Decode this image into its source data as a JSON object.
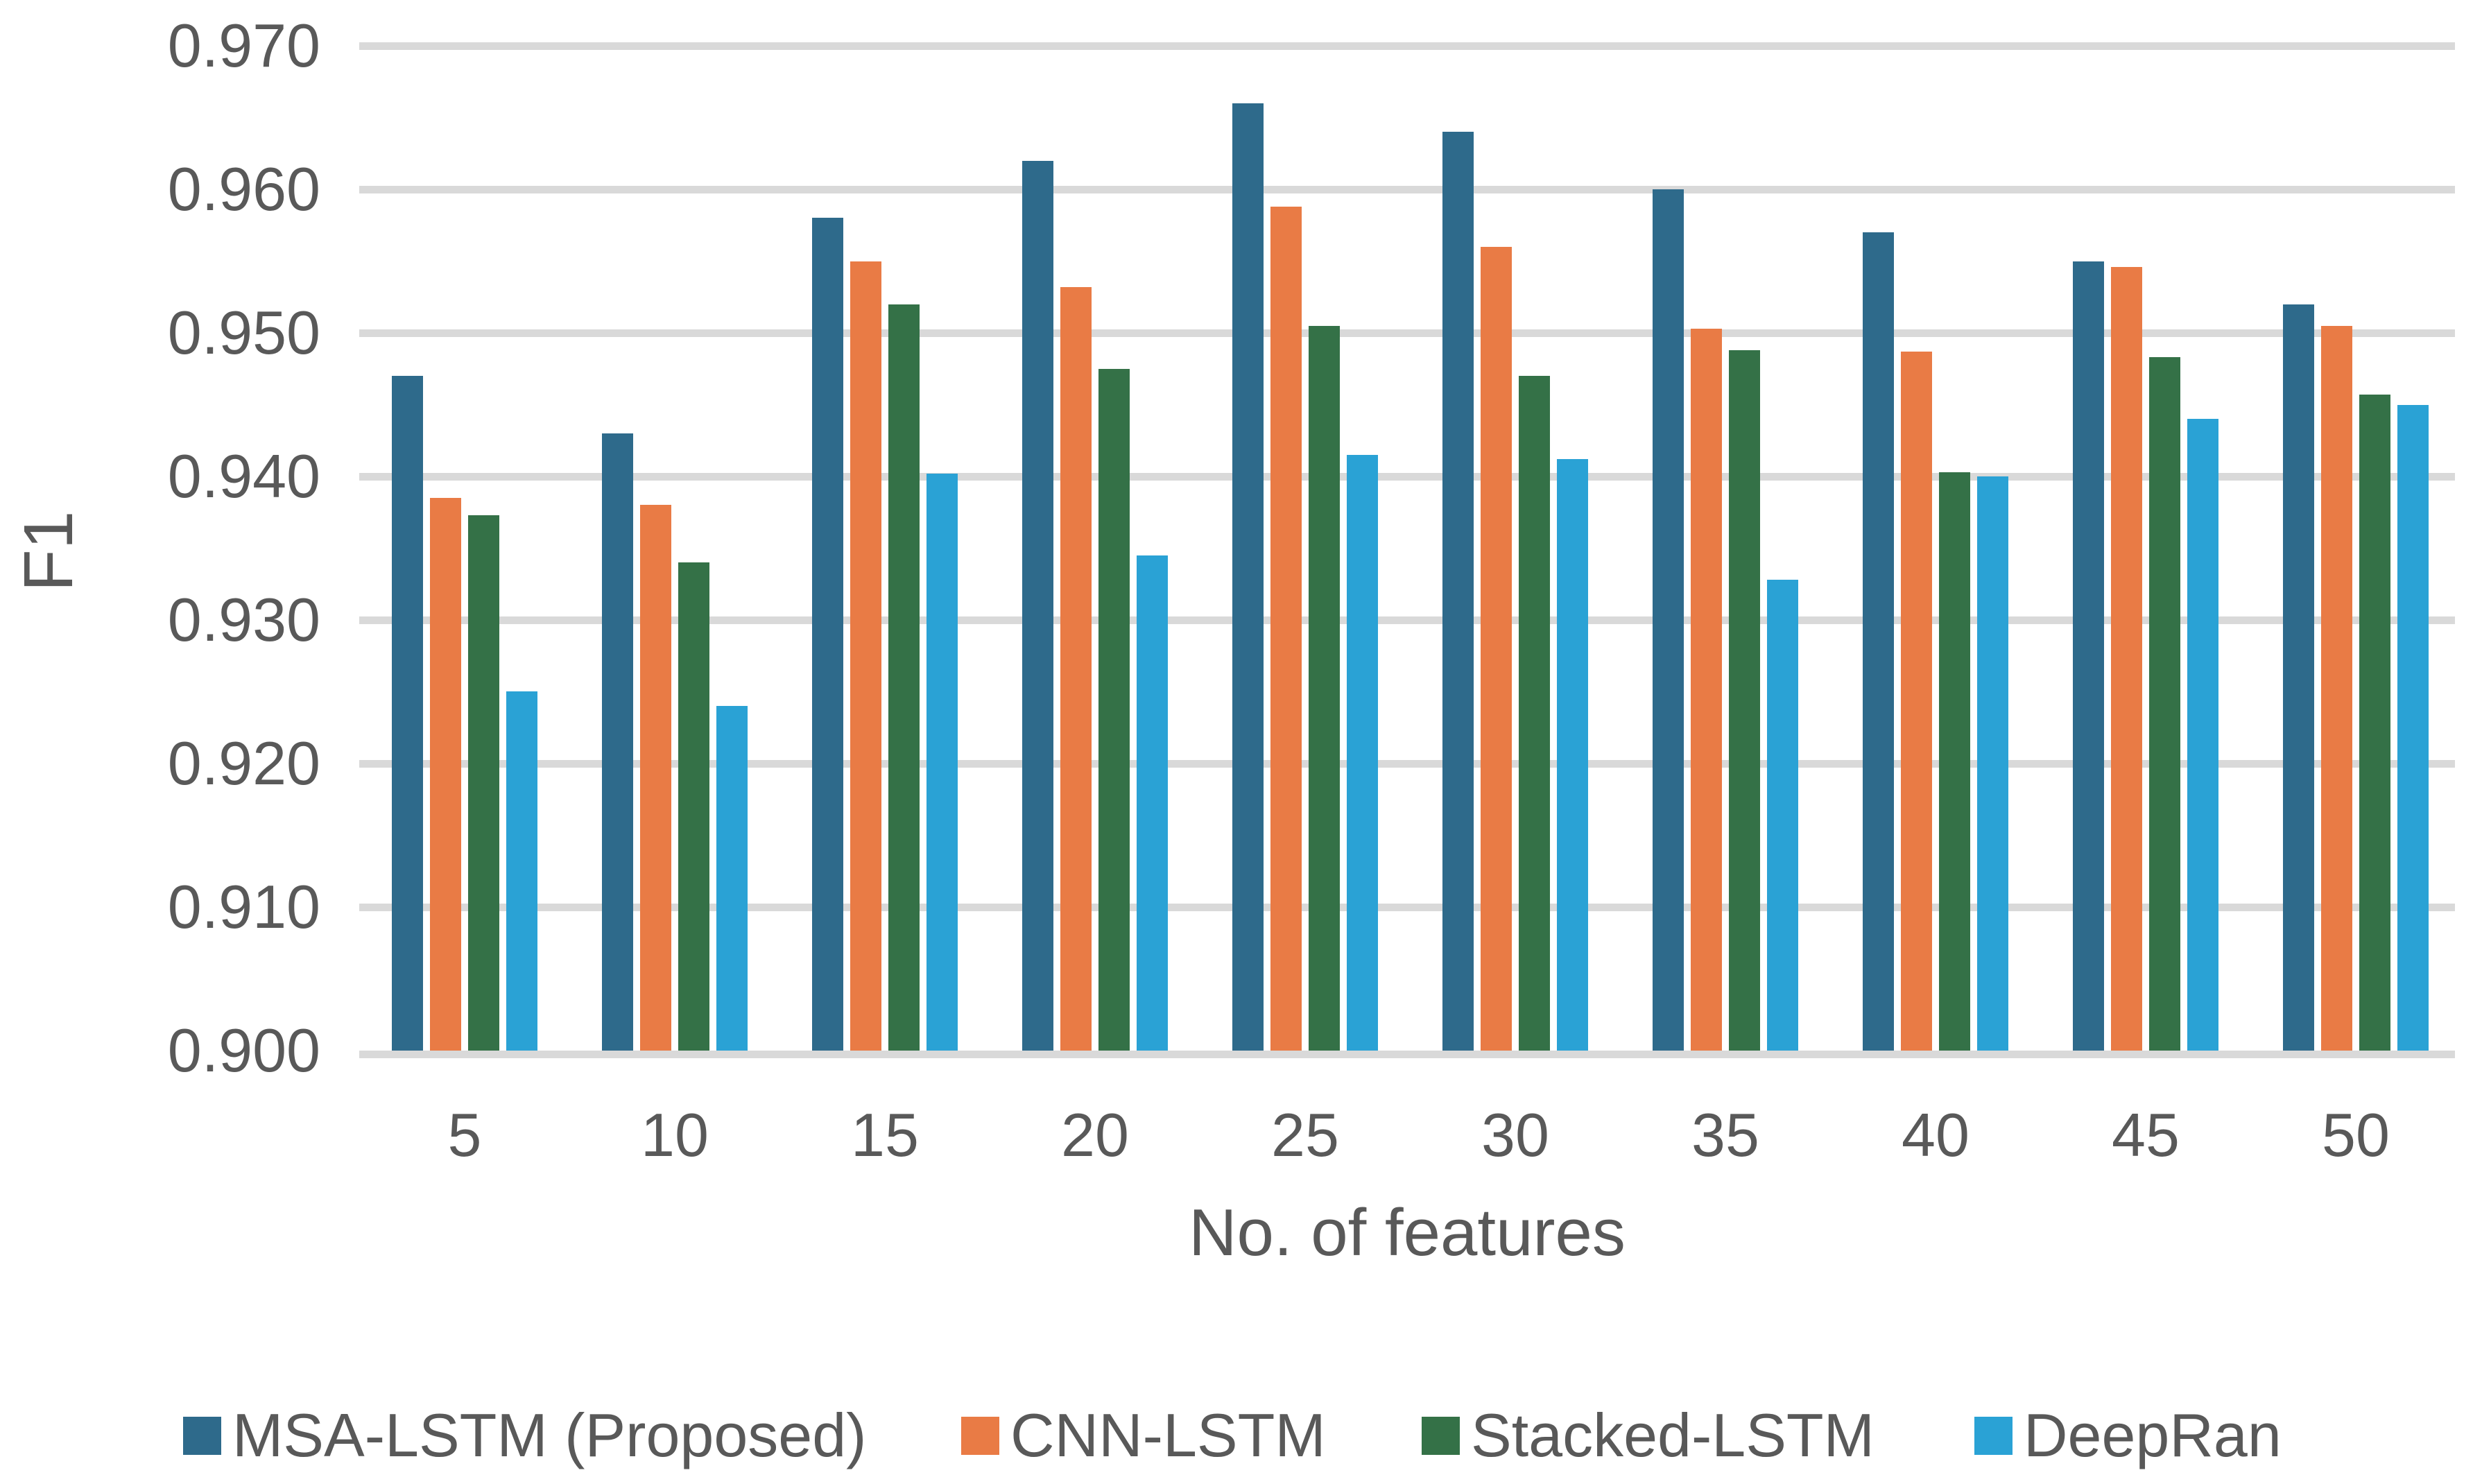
{
  "chart_data": {
    "type": "bar",
    "title": "",
    "xlabel": "No. of features",
    "ylabel": "F1",
    "categories": [
      "5",
      "10",
      "15",
      "20",
      "25",
      "30",
      "35",
      "40",
      "45",
      "50"
    ],
    "series": [
      {
        "name": "MSA-LSTM (Proposed)",
        "color": "#2E6A8B",
        "values": [
          0.947,
          0.943,
          0.958,
          0.962,
          0.966,
          0.964,
          0.96,
          0.957,
          0.955,
          0.952
        ]
      },
      {
        "name": "CNN-LSTM",
        "color": "#E97B45",
        "values": [
          0.9385,
          0.938,
          0.955,
          0.9532,
          0.9588,
          0.956,
          0.9503,
          0.9487,
          0.9546,
          0.9505
        ]
      },
      {
        "name": "Stacked-LSTM",
        "color": "#347147",
        "values": [
          0.9373,
          0.934,
          0.952,
          0.9475,
          0.9505,
          0.947,
          0.9488,
          0.9403,
          0.9483,
          0.9457
        ]
      },
      {
        "name": "DeepRan",
        "color": "#2AA2D5",
        "values": [
          0.925,
          0.924,
          0.9402,
          0.9345,
          0.9415,
          0.9412,
          0.9328,
          0.94,
          0.944,
          0.945
        ]
      }
    ],
    "ylim": [
      0.9,
      0.97
    ],
    "ytick_step": 0.01,
    "ytick_labels": [
      "0.970",
      "0.960",
      "0.950",
      "0.940",
      "0.930",
      "0.920",
      "0.910",
      "0.900"
    ],
    "grid": true,
    "legend_position": "bottom"
  },
  "colors": {
    "text": "#595959",
    "gridline": "#D9D9D9",
    "background": "#FFFFFF"
  }
}
